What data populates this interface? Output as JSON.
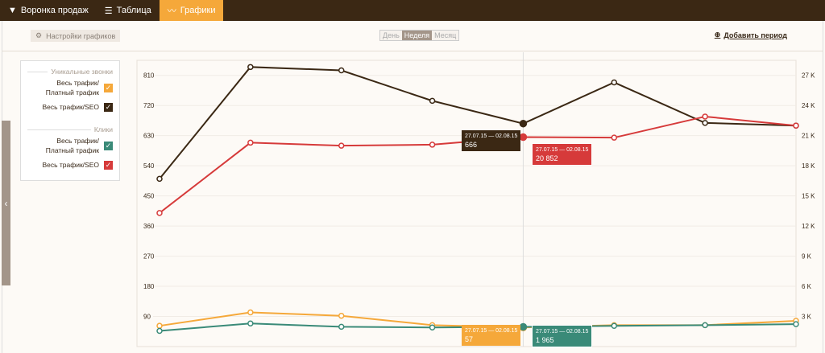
{
  "tabs": [
    {
      "label": "Воронка продаж",
      "icon": "filter-icon"
    },
    {
      "label": "Таблица",
      "icon": "list-icon"
    },
    {
      "label": "Графики",
      "icon": "chart-icon",
      "active": true
    }
  ],
  "toolbar": {
    "settings_label": "Настройки графиков",
    "periods": [
      "День",
      "Неделя",
      "Месяц"
    ],
    "selected_period": "Неделя",
    "add_period": "Добавить период"
  },
  "legend": {
    "groups": [
      {
        "title": "Уникальные звонки",
        "items": [
          {
            "label": "Весь трафик/Платный трафик",
            "color": "#f5a83a"
          },
          {
            "label": "Весь трафик/SEO",
            "color": "#3b2814"
          }
        ]
      },
      {
        "title": "Клики",
        "items": [
          {
            "label": "Весь трафик/Платный трафик",
            "color": "#3a8a78"
          },
          {
            "label": "Весь трафик/SEO",
            "color": "#d63a3a"
          }
        ]
      }
    ]
  },
  "chart_data": {
    "type": "line",
    "left_axis": {
      "ticks": [
        "90",
        "180",
        "270",
        "360",
        "450",
        "540",
        "630",
        "720",
        "810"
      ],
      "range": [
        0,
        855
      ]
    },
    "right_axis": {
      "ticks": [
        "3 K",
        "6 K",
        "9 K",
        "12 K",
        "15 K",
        "18 K",
        "21 K",
        "24 K",
        "27 K"
      ],
      "range": [
        0,
        28500
      ]
    },
    "points": 8,
    "highlight_index": 4,
    "series": [
      {
        "name": "Уникальные звонки: Весь трафик/SEO",
        "axis": "left",
        "color": "#3b2814",
        "values": [
          501,
          835,
          825,
          734,
          666,
          789,
          668,
          660
        ]
      },
      {
        "name": "Клики: Весь трафик/SEO",
        "axis": "right",
        "color": "#d63a3a",
        "values": [
          13300,
          20300,
          20000,
          20100,
          20852,
          20800,
          22900,
          22000
        ]
      },
      {
        "name": "Уникальные звонки: Весь трафик/Платный трафик",
        "axis": "left",
        "color": "#f5a83a",
        "values": [
          62,
          102,
          92,
          64,
          57,
          64,
          64,
          77
        ]
      },
      {
        "name": "Клики: Весь трафик/Платный трафик",
        "axis": "right",
        "color": "#3a8a78",
        "values": [
          1560,
          2300,
          1970,
          1900,
          1965,
          2060,
          2130,
          2230
        ]
      }
    ]
  },
  "tooltips": [
    {
      "period": "27.07.15 — 02.08.15",
      "value": "666"
    },
    {
      "period": "27.07.15 — 02.08.15",
      "value": "20 852"
    },
    {
      "period": "27.07.15 — 02.08.15",
      "value": "57"
    },
    {
      "period": "27.07.15 — 02.08.15",
      "value": "1 965"
    }
  ]
}
